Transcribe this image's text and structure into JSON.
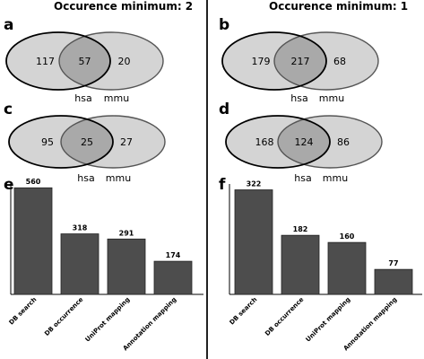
{
  "column_titles": {
    "left": "Occurence minimum: 2",
    "right": "Occurence minimum: 1"
  },
  "colors": {
    "circle_fill": "#d4d4d4",
    "overlap_fill": "#a9a9a9",
    "bar_fill": "#4d4d4d",
    "hsa_stroke": "#000000",
    "mmu_stroke": "#555555"
  },
  "chart_data": [
    {
      "type": "venn",
      "panel": "a",
      "sets": [
        "hsa",
        "mmu"
      ],
      "values": {
        "hsa_only": 117,
        "both": 57,
        "mmu_only": 20
      }
    },
    {
      "type": "venn",
      "panel": "b",
      "sets": [
        "hsa",
        "mmu"
      ],
      "values": {
        "hsa_only": 179,
        "both": 217,
        "mmu_only": 68
      }
    },
    {
      "type": "venn",
      "panel": "c",
      "sets": [
        "hsa",
        "mmu"
      ],
      "values": {
        "hsa_only": 95,
        "both": 25,
        "mmu_only": 27
      }
    },
    {
      "type": "venn",
      "panel": "d",
      "sets": [
        "hsa",
        "mmu"
      ],
      "values": {
        "hsa_only": 168,
        "both": 124,
        "mmu_only": 86
      }
    },
    {
      "type": "bar",
      "panel": "e",
      "categories": [
        "DB search",
        "DB occurrence",
        "UniProt mapping",
        "Annotation mapping"
      ],
      "values": [
        560,
        318,
        291,
        174
      ],
      "ylim": [
        0,
        580
      ]
    },
    {
      "type": "bar",
      "panel": "f",
      "categories": [
        "DB search",
        "DB occurrence",
        "UniProt mapping",
        "Annotation mapping"
      ],
      "values": [
        322,
        182,
        160,
        77
      ],
      "ylim": [
        0,
        340
      ]
    }
  ]
}
